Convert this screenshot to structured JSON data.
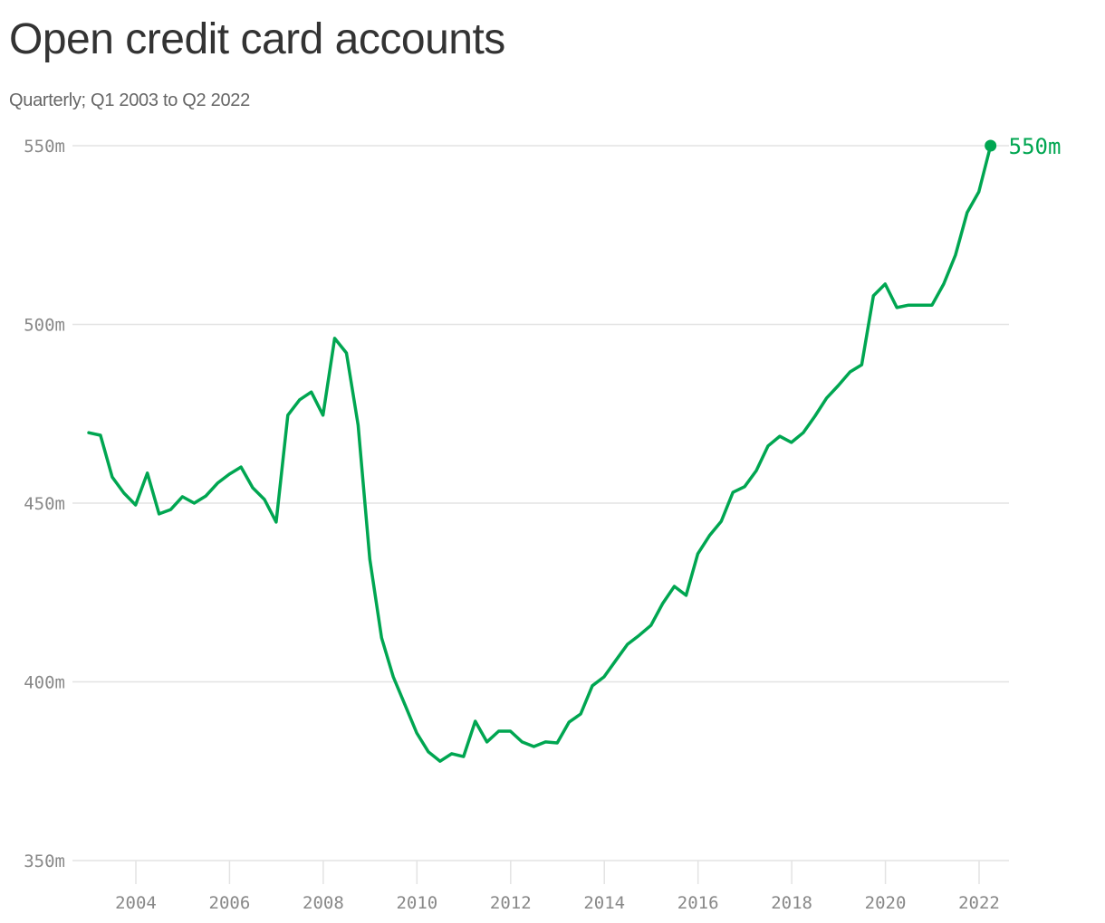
{
  "header": {
    "title": "Open credit card accounts",
    "subtitle": "Quarterly; Q1 2003 to Q2 2022"
  },
  "colors": {
    "line": "#00a651",
    "grid": "#e3e3e3",
    "axis_text": "#888888",
    "title": "#333333",
    "subtitle": "#666666"
  },
  "end_label": "550m",
  "chart_data": {
    "type": "line",
    "title": "Open credit card accounts",
    "subtitle": "Quarterly; Q1 2003 to Q2 2022",
    "xlabel": "",
    "ylabel": "",
    "unit": "millions",
    "ylim": [
      350,
      550
    ],
    "yticks": [
      350,
      400,
      450,
      500,
      550
    ],
    "ytick_labels": [
      "350m",
      "400m",
      "450m",
      "500m",
      "550m"
    ],
    "xticks": [
      2004,
      2006,
      2008,
      2010,
      2012,
      2014,
      2016,
      2018,
      2020,
      2022
    ],
    "xtick_labels": [
      "2004",
      "2006",
      "2008",
      "2010",
      "2012",
      "2014",
      "2016",
      "2018",
      "2020",
      "2022"
    ],
    "grid": "horizontal",
    "legend": "none",
    "annotation": {
      "text": "550m",
      "at": "2022 Q2"
    },
    "series": [
      {
        "name": "Open credit card accounts",
        "x": [
          "2003 Q1",
          "2003 Q2",
          "2003 Q3",
          "2003 Q4",
          "2004 Q1",
          "2004 Q2",
          "2004 Q3",
          "2004 Q4",
          "2005 Q1",
          "2005 Q2",
          "2005 Q3",
          "2005 Q4",
          "2006 Q1",
          "2006 Q2",
          "2006 Q3",
          "2006 Q4",
          "2007 Q1",
          "2007 Q2",
          "2007 Q3",
          "2007 Q4",
          "2008 Q1",
          "2008 Q2",
          "2008 Q3",
          "2008 Q4",
          "2009 Q1",
          "2009 Q2",
          "2009 Q3",
          "2009 Q4",
          "2010 Q1",
          "2010 Q2",
          "2010 Q3",
          "2010 Q4",
          "2011 Q1",
          "2011 Q2",
          "2011 Q3",
          "2011 Q4",
          "2012 Q1",
          "2012 Q2",
          "2012 Q3",
          "2012 Q4",
          "2013 Q1",
          "2013 Q2",
          "2013 Q3",
          "2013 Q4",
          "2014 Q1",
          "2014 Q2",
          "2014 Q3",
          "2014 Q4",
          "2015 Q1",
          "2015 Q2",
          "2015 Q3",
          "2015 Q4",
          "2016 Q1",
          "2016 Q2",
          "2016 Q3",
          "2016 Q4",
          "2017 Q1",
          "2017 Q2",
          "2017 Q3",
          "2017 Q4",
          "2018 Q1",
          "2018 Q2",
          "2018 Q3",
          "2018 Q4",
          "2019 Q1",
          "2019 Q2",
          "2019 Q3",
          "2019 Q4",
          "2020 Q1",
          "2020 Q2",
          "2020 Q3",
          "2020 Q4",
          "2021 Q1",
          "2021 Q2",
          "2021 Q3",
          "2021 Q4",
          "2022 Q1",
          "2022 Q2"
        ],
        "values": [
          469.7,
          469.0,
          457.3,
          452.8,
          449.5,
          458.4,
          447.0,
          448.2,
          451.8,
          450.0,
          452.0,
          455.6,
          458.1,
          460.1,
          454.3,
          451.0,
          444.7,
          474.6,
          478.9,
          481.1,
          474.6,
          496.1,
          492.0,
          471.8,
          434.3,
          412.3,
          401.4,
          393.6,
          385.7,
          380.4,
          377.8,
          379.9,
          379.1,
          389.0,
          383.2,
          386.2,
          386.2,
          383.2,
          381.9,
          383.2,
          382.9,
          388.7,
          391.0,
          398.9,
          401.4,
          406.0,
          410.5,
          413.0,
          415.8,
          421.9,
          426.7,
          424.2,
          435.8,
          440.9,
          444.9,
          453.0,
          454.6,
          459.1,
          466.0,
          468.7,
          467.0,
          469.7,
          474.3,
          479.4,
          482.9,
          486.7,
          488.7,
          508.0,
          511.3,
          504.7,
          505.4,
          505.4,
          505.4,
          511.3,
          519.4,
          531.3,
          537.1,
          550.0
        ]
      }
    ]
  }
}
